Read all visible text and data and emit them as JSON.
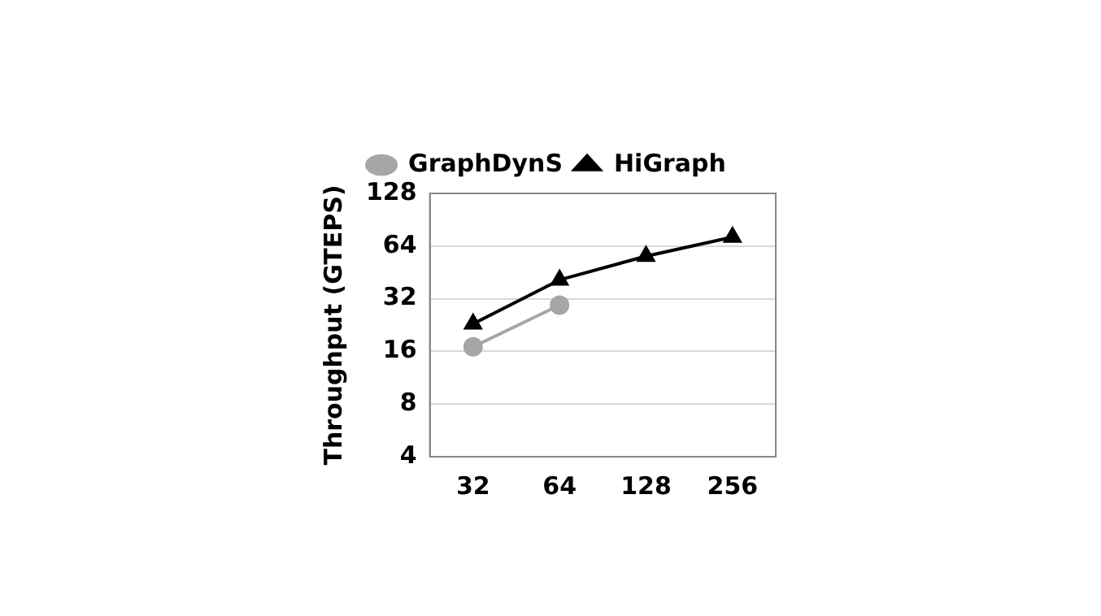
{
  "chart_data": {
    "type": "line",
    "ylabel": "Throughput (GTEPS)",
    "categories": [
      "32",
      "64",
      "128",
      "256"
    ],
    "series": [
      {
        "name": "GraphDynS",
        "color": "#a6a6a6",
        "marker": "circle",
        "values": [
          17,
          29.4,
          null,
          null
        ]
      },
      {
        "name": "HiGraph",
        "color": "#000000",
        "marker": "triangle",
        "values": [
          23,
          41,
          56,
          72
        ]
      }
    ],
    "log": true,
    "ylim": [
      4,
      128
    ],
    "yticks": [
      4,
      8,
      16,
      32,
      64,
      128
    ],
    "grid": "y",
    "legend": "top"
  }
}
